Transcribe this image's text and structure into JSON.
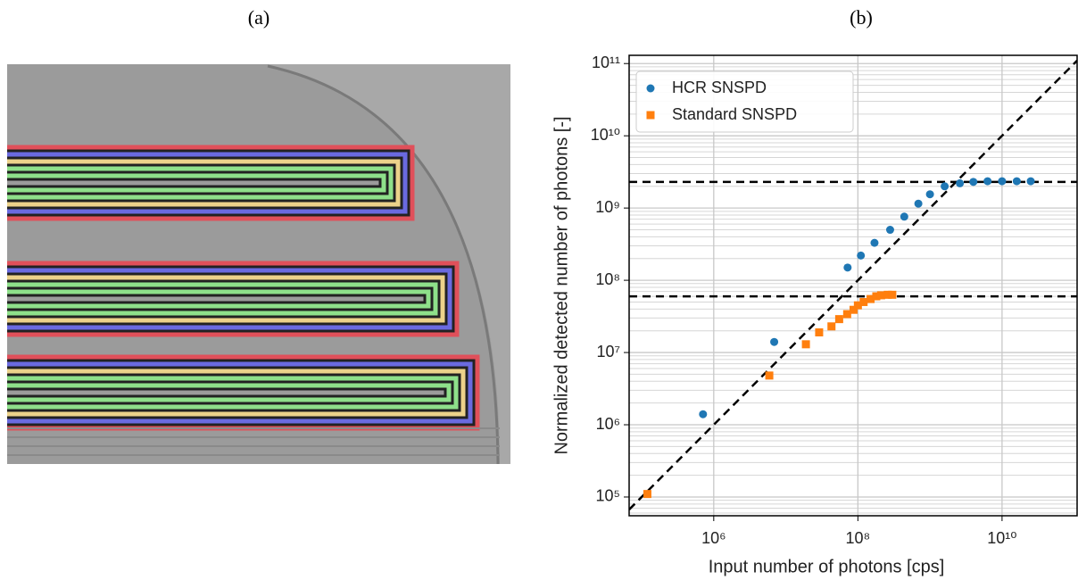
{
  "figure_labels": [
    "(a)",
    "(b)"
  ],
  "chart_data": {
    "type": "scatter",
    "xlabel": "Input number of photons [cps]",
    "ylabel": "Normalized detected number of photons [-]",
    "log_x": true,
    "log_y": true,
    "xlim": [
      67000,
      110000000000
    ],
    "ylim": [
      55000,
      130000000000
    ],
    "xticks": [
      {
        "value": 1000000,
        "label": "10⁶"
      },
      {
        "value": 100000000,
        "label": "10⁸"
      },
      {
        "value": 10000000000,
        "label": "10¹⁰"
      }
    ],
    "yticks": [
      {
        "value": 100000,
        "label": "10⁵"
      },
      {
        "value": 1000000,
        "label": "10⁶"
      },
      {
        "value": 10000000,
        "label": "10⁷"
      },
      {
        "value": 100000000,
        "label": "10⁸"
      },
      {
        "value": 1000000000,
        "label": "10⁹"
      },
      {
        "value": 10000000000,
        "label": "10¹⁰"
      },
      {
        "value": 100000000000,
        "label": "10¹¹"
      }
    ],
    "grid": true,
    "minor_grid_y": true,
    "diagonal": true,
    "hlines": [
      2300000000,
      60000000
    ],
    "legend": "upper left",
    "series": [
      {
        "name": "HCR SNSPD",
        "color": "#1f77b4",
        "marker": "circle",
        "x": [
          710000,
          6900000,
          72000000,
          110000000,
          170000000,
          280000000,
          440000000,
          690000000,
          1000000000,
          1600000000,
          2600000000,
          4000000000,
          6300000000,
          10000000000,
          16000000000,
          25000000000
        ],
        "values": [
          1400000,
          14000000,
          150000000,
          220000000,
          330000000,
          500000000,
          760000000,
          1150000000,
          1550000000,
          2000000000,
          2200000000,
          2300000000,
          2350000000,
          2350000000,
          2350000000,
          2350000000
        ]
      },
      {
        "name": "Standard SNSPD",
        "color": "#ff7f0e",
        "marker": "square",
        "x": [
          120000,
          5900000,
          19000000,
          29000000,
          43000000,
          55000000,
          71000000,
          87000000,
          100000000,
          120000000,
          150000000,
          180000000,
          210000000,
          260000000,
          300000000
        ],
        "values": [
          110000,
          4800000,
          13000000,
          19000000,
          23000000,
          29000000,
          34000000,
          39000000,
          45000000,
          50000000,
          55000000,
          60000000,
          62000000,
          63000000,
          63000000
        ]
      }
    ]
  }
}
